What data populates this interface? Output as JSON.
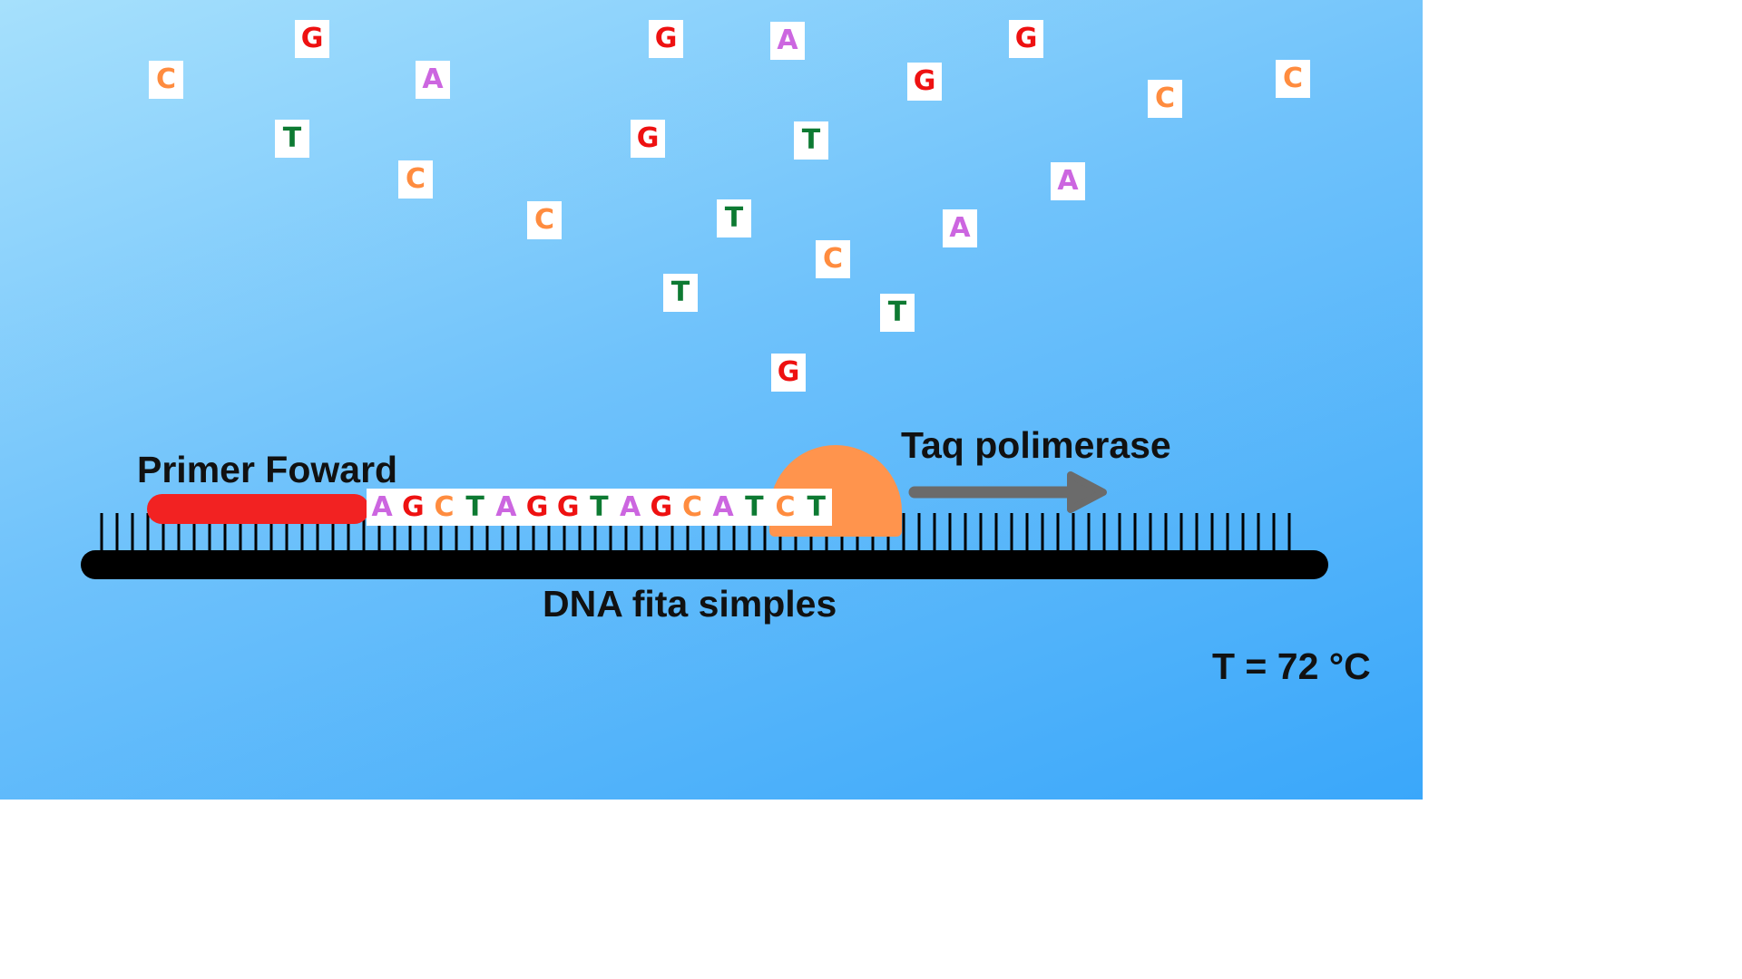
{
  "colors": {
    "A": "#cc66e0",
    "G": "#ee1111",
    "C": "#ff8c3f",
    "T": "#0d7a32",
    "primer": "#f22222",
    "taq_polymerase": "#ff944d",
    "arrow": "#6b6b6b",
    "strand": "#000000"
  },
  "free_nucleotides": [
    "G",
    "C",
    "A",
    "T",
    "C",
    "G",
    "A",
    "G",
    "C",
    "G",
    "G",
    "T",
    "C",
    "C",
    "A",
    "T",
    "C",
    "A",
    "T",
    "T",
    "G"
  ],
  "synthesized_sequence": [
    "A",
    "G",
    "C",
    "T",
    "A",
    "G",
    "G",
    "T",
    "A",
    "G",
    "C",
    "A",
    "T",
    "C",
    "T"
  ],
  "labels": {
    "primer": "Primer Foward",
    "enzyme": "Taq polimerase",
    "strand": "DNA fita simples",
    "temperature": "T = 72 °C"
  }
}
